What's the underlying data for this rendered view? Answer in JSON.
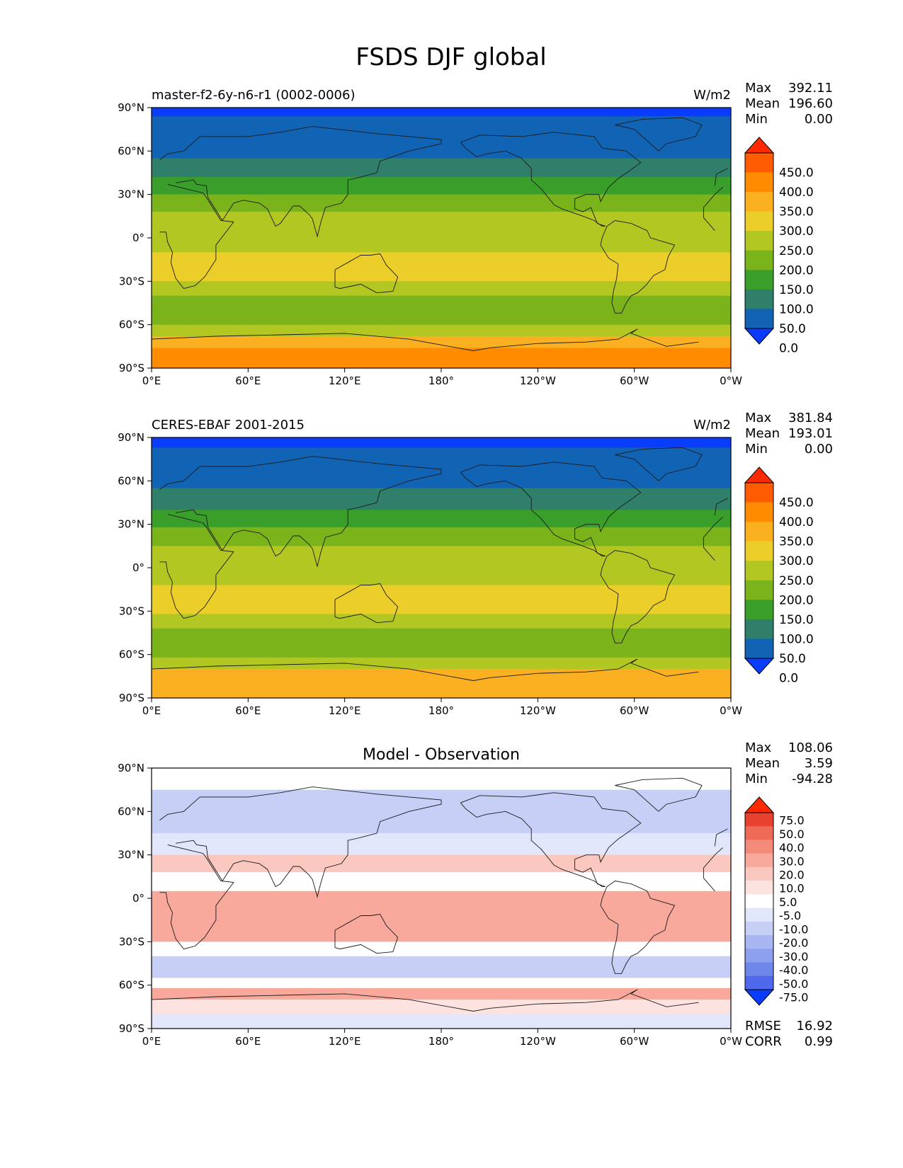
{
  "figure": {
    "title": "FSDS DJF global"
  },
  "chart_data": [
    {
      "type": "heatmap",
      "panel": "model",
      "left_label": "master-f2-6y-n6-r1 (0002-0006)",
      "right_label": "W/m2",
      "stats": [
        {
          "label": "Max",
          "value": "392.11"
        },
        {
          "label": "Mean",
          "value": "196.60"
        },
        {
          "label": "Min",
          "value": "0.00"
        }
      ],
      "x_ticks": [
        "0°E",
        "60°E",
        "120°E",
        "180°",
        "120°W",
        "60°W",
        "0°W"
      ],
      "y_ticks": [
        "90°N",
        "60°N",
        "30°N",
        "0°",
        "30°S",
        "60°S",
        "90°S"
      ],
      "xlim": [
        0,
        360
      ],
      "ylim": [
        -90,
        90
      ],
      "colorbar": {
        "levels": [
          "450.0",
          "400.0",
          "350.0",
          "300.0",
          "250.0",
          "200.0",
          "150.0",
          "100.0",
          "50.0",
          "0.0"
        ],
        "colors": [
          "#ff2a00",
          "#ff5b00",
          "#ff8c00",
          "#fbb021",
          "#ebce2a",
          "#b3c723",
          "#7bb31a",
          "#3a9e2a",
          "#2f7f6b",
          "#1163b3",
          "#0a3cff"
        ]
      },
      "zonal_bands": [
        {
          "lat": [
            84,
            90
          ],
          "value": -20
        },
        {
          "lat": [
            55,
            84
          ],
          "value": 30
        },
        {
          "lat": [
            42,
            55
          ],
          "value": 80
        },
        {
          "lat": [
            30,
            42
          ],
          "value": 130
        },
        {
          "lat": [
            18,
            30
          ],
          "value": 180
        },
        {
          "lat": [
            8,
            18
          ],
          "value": 230
        },
        {
          "lat": [
            -10,
            8
          ],
          "value": 230
        },
        {
          "lat": [
            -30,
            -10
          ],
          "value": 280
        },
        {
          "lat": [
            -40,
            -30
          ],
          "value": 230
        },
        {
          "lat": [
            -45,
            -40
          ],
          "value": 180
        },
        {
          "lat": [
            -60,
            -45
          ],
          "value": 180
        },
        {
          "lat": [
            -68,
            -60
          ],
          "value": 230
        },
        {
          "lat": [
            -76,
            -68
          ],
          "value": 330
        },
        {
          "lat": [
            -90,
            -76
          ],
          "value": 360
        }
      ]
    },
    {
      "type": "heatmap",
      "panel": "observation",
      "left_label": "CERES-EBAF 2001-2015",
      "right_label": "W/m2",
      "stats": [
        {
          "label": "Max",
          "value": "381.84"
        },
        {
          "label": "Mean",
          "value": "193.01"
        },
        {
          "label": "Min",
          "value": "0.00"
        }
      ],
      "x_ticks": [
        "0°E",
        "60°E",
        "120°E",
        "180°",
        "120°W",
        "60°W",
        "0°W"
      ],
      "y_ticks": [
        "90°N",
        "60°N",
        "30°N",
        "0°",
        "30°S",
        "60°S",
        "90°S"
      ],
      "xlim": [
        0,
        360
      ],
      "ylim": [
        -90,
        90
      ],
      "colorbar": {
        "levels": [
          "450.0",
          "400.0",
          "350.0",
          "300.0",
          "250.0",
          "200.0",
          "150.0",
          "100.0",
          "50.0",
          "0.0"
        ],
        "colors": [
          "#ff2a00",
          "#ff5b00",
          "#ff8c00",
          "#fbb021",
          "#ebce2a",
          "#b3c723",
          "#7bb31a",
          "#3a9e2a",
          "#2f7f6b",
          "#1163b3",
          "#0a3cff"
        ]
      },
      "zonal_bands": [
        {
          "lat": [
            83,
            90
          ],
          "value": -20
        },
        {
          "lat": [
            55,
            83
          ],
          "value": 30
        },
        {
          "lat": [
            40,
            55
          ],
          "value": 80
        },
        {
          "lat": [
            28,
            40
          ],
          "value": 130
        },
        {
          "lat": [
            15,
            28
          ],
          "value": 180
        },
        {
          "lat": [
            -12,
            15
          ],
          "value": 230
        },
        {
          "lat": [
            -32,
            -12
          ],
          "value": 280
        },
        {
          "lat": [
            -42,
            -32
          ],
          "value": 230
        },
        {
          "lat": [
            -62,
            -42
          ],
          "value": 180
        },
        {
          "lat": [
            -70,
            -62
          ],
          "value": 230
        },
        {
          "lat": [
            -90,
            -70
          ],
          "value": 330
        }
      ]
    },
    {
      "type": "heatmap",
      "panel": "difference",
      "title": "Model - Observation",
      "stats": [
        {
          "label": "Max",
          "value": "108.06"
        },
        {
          "label": "Mean",
          "value": "3.59"
        },
        {
          "label": "Min",
          "value": "-94.28"
        }
      ],
      "metrics": [
        {
          "label": "RMSE",
          "value": "16.92"
        },
        {
          "label": "CORR",
          "value": "0.99"
        }
      ],
      "x_ticks": [
        "0°E",
        "60°E",
        "120°E",
        "180°",
        "120°W",
        "60°W",
        "0°W"
      ],
      "y_ticks": [
        "90°N",
        "60°N",
        "30°N",
        "0°",
        "30°S",
        "60°S",
        "90°S"
      ],
      "xlim": [
        0,
        360
      ],
      "ylim": [
        -90,
        90
      ],
      "colorbar": {
        "levels": [
          "75.0",
          "50.0",
          "40.0",
          "30.0",
          "20.0",
          "10.0",
          "5.0",
          "-5.0",
          "-10.0",
          "-20.0",
          "-30.0",
          "-40.0",
          "-50.0",
          "-75.0"
        ],
        "colors": [
          "#ff2a00",
          "#e8412f",
          "#ef6a57",
          "#f48b7a",
          "#f8a99c",
          "#fbc8c0",
          "#fde3df",
          "#ffffff",
          "#e1e6fb",
          "#c6d0f7",
          "#a8b7f2",
          "#8da0ee",
          "#6f86ea",
          "#4f68ec",
          "#0a3cff"
        ]
      },
      "zonal_bands": [
        {
          "lat": [
            75,
            90
          ],
          "value": 0
        },
        {
          "lat": [
            45,
            75
          ],
          "value": -15
        },
        {
          "lat": [
            30,
            45
          ],
          "value": -8
        },
        {
          "lat": [
            18,
            30
          ],
          "value": 12
        },
        {
          "lat": [
            5,
            18
          ],
          "value": 0
        },
        {
          "lat": [
            -30,
            5
          ],
          "value": 22
        },
        {
          "lat": [
            -40,
            -30
          ],
          "value": 0
        },
        {
          "lat": [
            -55,
            -40
          ],
          "value": -12
        },
        {
          "lat": [
            -62,
            -55
          ],
          "value": 0
        },
        {
          "lat": [
            -70,
            -62
          ],
          "value": 25
        },
        {
          "lat": [
            -80,
            -70
          ],
          "value": 8
        },
        {
          "lat": [
            -90,
            -80
          ],
          "value": -8
        }
      ]
    }
  ]
}
